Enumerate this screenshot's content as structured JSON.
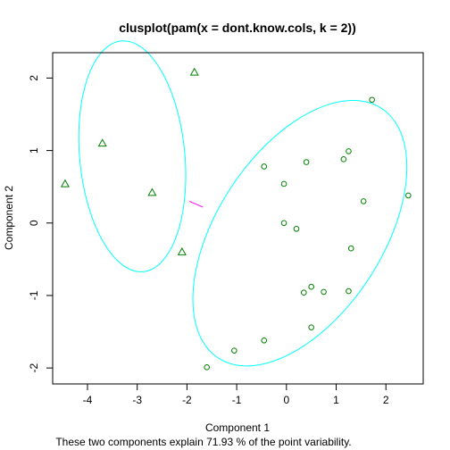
{
  "chart_data": {
    "type": "scatter",
    "title": "clusplot(pam(x = dont.know.cols, k = 2))",
    "xlabel": "Component 1",
    "ylabel": "Component 2",
    "subtitle": "These two components explain 71.93 % of the point variability.",
    "xlim": [
      -4.7,
      2.75
    ],
    "ylim": [
      -2.22,
      2.35
    ],
    "x_ticks": [
      -4,
      -3,
      -2,
      -1,
      0,
      1,
      2
    ],
    "y_ticks": [
      -2,
      -1,
      0,
      1,
      2
    ],
    "grid": false,
    "colors": {
      "points": "#008000",
      "ellipse": "#00FFFF",
      "connector": "#FF00FF",
      "axes": "#000000"
    },
    "clusters": [
      {
        "id": 1,
        "marker": "triangle",
        "points": [
          {
            "x": -1.85,
            "y": 2.08
          },
          {
            "x": -3.7,
            "y": 1.1
          },
          {
            "x": -4.45,
            "y": 0.54
          },
          {
            "x": -2.7,
            "y": 0.42
          },
          {
            "x": -2.1,
            "y": -0.4
          }
        ],
        "ellipse": {
          "cx": -3.1,
          "cy": 0.92,
          "a": 1.61,
          "b": 1.05,
          "angle_deg": -79
        }
      },
      {
        "id": 2,
        "marker": "circle",
        "points": [
          {
            "x": 1.72,
            "y": 1.7
          },
          {
            "x": 1.25,
            "y": 0.99
          },
          {
            "x": 1.15,
            "y": 0.88
          },
          {
            "x": 0.4,
            "y": 0.84
          },
          {
            "x": -0.45,
            "y": 0.78
          },
          {
            "x": -0.05,
            "y": 0.54
          },
          {
            "x": 2.45,
            "y": 0.38
          },
          {
            "x": 1.55,
            "y": 0.3
          },
          {
            "x": -0.05,
            "y": 0.0
          },
          {
            "x": 0.2,
            "y": -0.08
          },
          {
            "x": 1.3,
            "y": -0.35
          },
          {
            "x": 0.5,
            "y": -0.88
          },
          {
            "x": 0.35,
            "y": -0.96
          },
          {
            "x": 0.75,
            "y": -0.95
          },
          {
            "x": 1.25,
            "y": -0.94
          },
          {
            "x": 0.5,
            "y": -1.44
          },
          {
            "x": -0.45,
            "y": -1.62
          },
          {
            "x": -1.05,
            "y": -1.76
          },
          {
            "x": -1.6,
            "y": -1.99
          }
        ],
        "ellipse": {
          "cx": 0.27,
          "cy": -0.14,
          "a": 2.46,
          "b": 1.39,
          "angle_deg": 36
        }
      }
    ],
    "connector": {
      "x1": -1.95,
      "y1": 0.3,
      "x2": -1.68,
      "y2": 0.22
    }
  }
}
